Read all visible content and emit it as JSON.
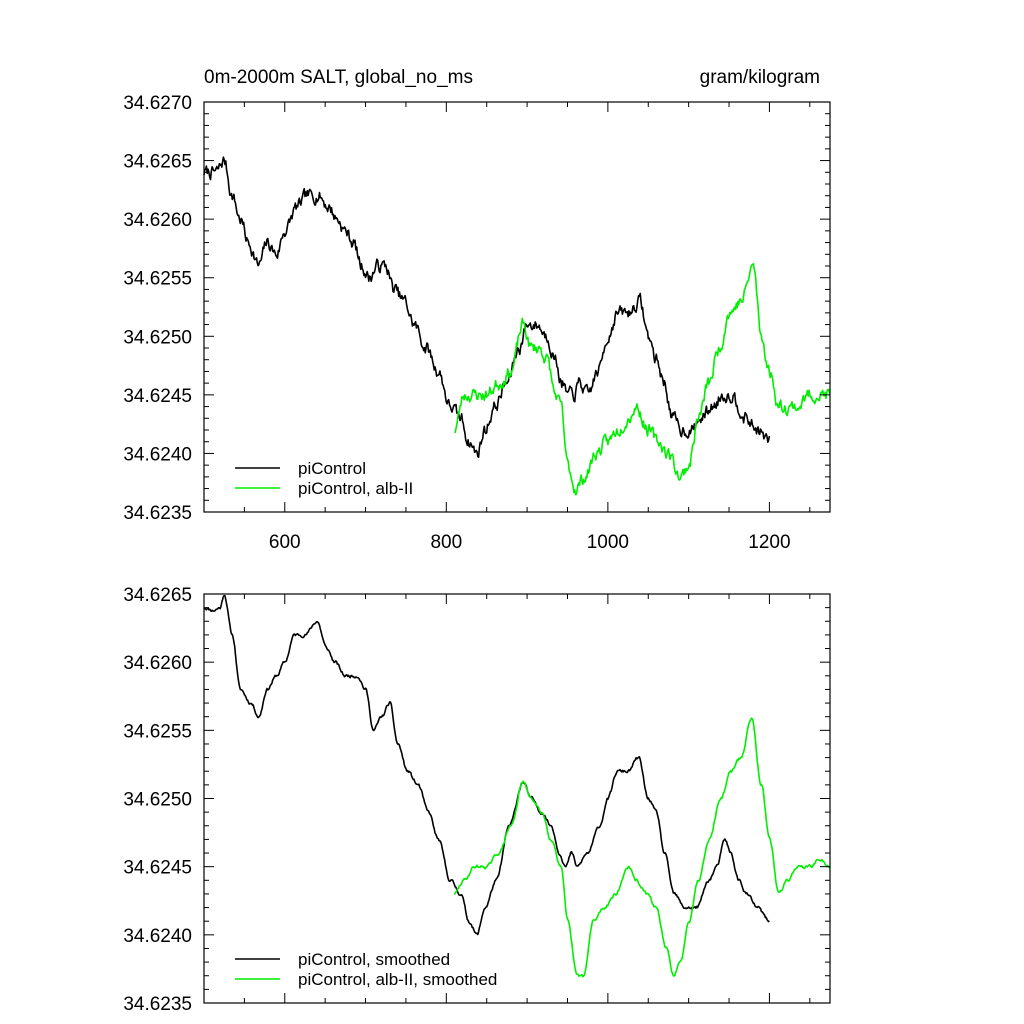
{
  "header": {
    "left_title": "0m-2000m SALT, global_no_ms",
    "right_units": "gram/kilogram"
  },
  "colors": {
    "control": "#000000",
    "experiment": "#00ee00"
  },
  "chart_data": [
    {
      "type": "line",
      "title": "0m-2000m SALT, global_no_ms",
      "units": "gram/kilogram",
      "xlim": [
        500,
        1275
      ],
      "ylim": [
        34.6235,
        34.627
      ],
      "x_ticks": [
        600,
        800,
        1000,
        1200
      ],
      "x_tick_labels": [
        "600",
        "800",
        "1000",
        "1200"
      ],
      "y_ticks": [
        34.6235,
        34.624,
        34.6245,
        34.625,
        34.6255,
        34.626,
        34.6265,
        34.627
      ],
      "y_tick_labels": [
        "34.6235",
        "34.6240",
        "34.6245",
        "34.6250",
        "34.6255",
        "34.6260",
        "34.6265",
        "34.6270"
      ],
      "legend_position": "bottom-left",
      "series": [
        {
          "name": "piControl",
          "color": "#000000",
          "noise": 9e-05,
          "seed": 7,
          "keypoints": [
            [
              500,
              34.6264
            ],
            [
              515,
              34.6264
            ],
            [
              525,
              34.6265
            ],
            [
              535,
              34.6262
            ],
            [
              545,
              34.626
            ],
            [
              555,
              34.6258
            ],
            [
              568,
              34.6256
            ],
            [
              578,
              34.6258
            ],
            [
              590,
              34.6257
            ],
            [
              600,
              34.6259
            ],
            [
              615,
              34.6261
            ],
            [
              628,
              34.6262
            ],
            [
              642,
              34.6262
            ],
            [
              655,
              34.6261
            ],
            [
              665,
              34.626
            ],
            [
              675,
              34.6259
            ],
            [
              685,
              34.6258
            ],
            [
              695,
              34.6256
            ],
            [
              705,
              34.6255
            ],
            [
              715,
              34.6256
            ],
            [
              725,
              34.6256
            ],
            [
              735,
              34.6254
            ],
            [
              748,
              34.6253
            ],
            [
              760,
              34.6251
            ],
            [
              775,
              34.6249
            ],
            [
              790,
              34.6247
            ],
            [
              805,
              34.6244
            ],
            [
              818,
              34.6243
            ],
            [
              828,
              34.6241
            ],
            [
              838,
              34.624
            ],
            [
              848,
              34.6242
            ],
            [
              860,
              34.6244
            ],
            [
              875,
              34.6246
            ],
            [
              890,
              34.6249
            ],
            [
              900,
              34.6251
            ],
            [
              912,
              34.6251
            ],
            [
              925,
              34.625
            ],
            [
              935,
              34.6248
            ],
            [
              943,
              34.6246
            ],
            [
              950,
              34.6245
            ],
            [
              958,
              34.6245
            ],
            [
              965,
              34.6246
            ],
            [
              975,
              34.6245
            ],
            [
              988,
              34.6247
            ],
            [
              1000,
              34.625
            ],
            [
              1012,
              34.6252
            ],
            [
              1025,
              34.6252
            ],
            [
              1040,
              34.6253
            ],
            [
              1050,
              34.625
            ],
            [
              1060,
              34.6248
            ],
            [
              1070,
              34.6246
            ],
            [
              1080,
              34.6243
            ],
            [
              1092,
              34.6242
            ],
            [
              1105,
              34.6242
            ],
            [
              1115,
              34.6243
            ],
            [
              1130,
              34.6244
            ],
            [
              1142,
              34.6245
            ],
            [
              1155,
              34.6245
            ],
            [
              1162,
              34.6244
            ],
            [
              1170,
              34.6243
            ],
            [
              1185,
              34.6242
            ],
            [
              1200,
              34.6241
            ]
          ]
        },
        {
          "name": "piControl, alb-II",
          "color": "#00ee00",
          "noise": 9e-05,
          "seed": 23,
          "keypoints": [
            [
              810,
              34.6242
            ],
            [
              822,
              34.6245
            ],
            [
              835,
              34.6245
            ],
            [
              850,
              34.6245
            ],
            [
              865,
              34.6246
            ],
            [
              880,
              34.6247
            ],
            [
              895,
              34.6251
            ],
            [
              905,
              34.6249
            ],
            [
              915,
              34.6249
            ],
            [
              925,
              34.6248
            ],
            [
              935,
              34.6245
            ],
            [
              942,
              34.6244
            ],
            [
              950,
              34.6239
            ],
            [
              960,
              34.6237
            ],
            [
              972,
              34.6238
            ],
            [
              985,
              34.624
            ],
            [
              1000,
              34.6241
            ],
            [
              1012,
              34.6242
            ],
            [
              1025,
              34.6243
            ],
            [
              1035,
              34.6244
            ],
            [
              1050,
              34.6242
            ],
            [
              1062,
              34.6241
            ],
            [
              1075,
              34.624
            ],
            [
              1090,
              34.6238
            ],
            [
              1100,
              34.6239
            ],
            [
              1112,
              34.6243
            ],
            [
              1125,
              34.6246
            ],
            [
              1138,
              34.6249
            ],
            [
              1150,
              34.6252
            ],
            [
              1165,
              34.6253
            ],
            [
              1180,
              34.6256
            ],
            [
              1190,
              34.625
            ],
            [
              1200,
              34.6247
            ],
            [
              1212,
              34.6244
            ],
            [
              1222,
              34.6244
            ],
            [
              1235,
              34.6244
            ],
            [
              1250,
              34.6245
            ],
            [
              1262,
              34.6245
            ],
            [
              1275,
              34.6245
            ]
          ]
        }
      ]
    },
    {
      "type": "line",
      "xlim": [
        500,
        1275
      ],
      "ylim": [
        34.6235,
        34.6265
      ],
      "x_ticks": [
        600,
        800,
        1000,
        1200
      ],
      "y_ticks": [
        34.6235,
        34.624,
        34.6245,
        34.625,
        34.6255,
        34.626,
        34.6265
      ],
      "y_tick_labels": [
        "34.6235",
        "34.6240",
        "34.6245",
        "34.6250",
        "34.6255",
        "34.6260",
        "34.6265"
      ],
      "legend_position": "bottom-left",
      "series": [
        {
          "name": "piControl, smoothed",
          "color": "#000000",
          "noise": 2e-05,
          "seed": 11,
          "keypoints": [
            [
              500,
              34.6264
            ],
            [
              512,
              34.62638
            ],
            [
              520,
              34.6264
            ],
            [
              525,
              34.6265
            ],
            [
              535,
              34.6262
            ],
            [
              545,
              34.6258
            ],
            [
              558,
              34.6257
            ],
            [
              568,
              34.6256
            ],
            [
              578,
              34.6258
            ],
            [
              590,
              34.6259
            ],
            [
              600,
              34.626
            ],
            [
              612,
              34.6262
            ],
            [
              625,
              34.6262
            ],
            [
              640,
              34.6263
            ],
            [
              652,
              34.6261
            ],
            [
              662,
              34.626
            ],
            [
              675,
              34.6259
            ],
            [
              690,
              34.6259
            ],
            [
              700,
              34.6258
            ],
            [
              710,
              34.6255
            ],
            [
              720,
              34.6256
            ],
            [
              730,
              34.6257
            ],
            [
              740,
              34.6254
            ],
            [
              752,
              34.6252
            ],
            [
              765,
              34.6251
            ],
            [
              778,
              34.6249
            ],
            [
              790,
              34.6247
            ],
            [
              805,
              34.6244
            ],
            [
              818,
              34.6243
            ],
            [
              828,
              34.6241
            ],
            [
              838,
              34.624
            ],
            [
              848,
              34.6242
            ],
            [
              862,
              34.6244
            ],
            [
              878,
              34.6248
            ],
            [
              895,
              34.62512
            ],
            [
              905,
              34.625
            ],
            [
              918,
              34.6249
            ],
            [
              930,
              34.6248
            ],
            [
              940,
              34.6246
            ],
            [
              948,
              34.6245
            ],
            [
              955,
              34.6246
            ],
            [
              962,
              34.6245
            ],
            [
              975,
              34.6246
            ],
            [
              990,
              34.6248
            ],
            [
              1000,
              34.625
            ],
            [
              1012,
              34.6252
            ],
            [
              1025,
              34.6252
            ],
            [
              1038,
              34.6253
            ],
            [
              1050,
              34.625
            ],
            [
              1060,
              34.6249
            ],
            [
              1070,
              34.6246
            ],
            [
              1082,
              34.6243
            ],
            [
              1095,
              34.6242
            ],
            [
              1110,
              34.6242
            ],
            [
              1125,
              34.6244
            ],
            [
              1135,
              34.6245
            ],
            [
              1145,
              34.6247
            ],
            [
              1152,
              34.6246
            ],
            [
              1162,
              34.6244
            ],
            [
              1172,
              34.6243
            ],
            [
              1185,
              34.6242
            ],
            [
              1200,
              34.6241
            ]
          ]
        },
        {
          "name": "piControl, alb-II, smoothed",
          "color": "#00ee00",
          "noise": 2e-05,
          "seed": 29,
          "keypoints": [
            [
              810,
              34.6243
            ],
            [
              822,
              34.6244
            ],
            [
              835,
              34.6245
            ],
            [
              850,
              34.6245
            ],
            [
              865,
              34.6246
            ],
            [
              880,
              34.6248
            ],
            [
              895,
              34.62512
            ],
            [
              905,
              34.625
            ],
            [
              918,
              34.6249
            ],
            [
              930,
              34.6247
            ],
            [
              942,
              34.6245
            ],
            [
              950,
              34.6241
            ],
            [
              962,
              34.6237
            ],
            [
              970,
              34.6237
            ],
            [
              982,
              34.6241
            ],
            [
              995,
              34.6242
            ],
            [
              1010,
              34.6243
            ],
            [
              1025,
              34.6245
            ],
            [
              1035,
              34.6244
            ],
            [
              1048,
              34.6243
            ],
            [
              1060,
              34.6242
            ],
            [
              1072,
              34.6239
            ],
            [
              1082,
              34.6237
            ],
            [
              1090,
              34.6238
            ],
            [
              1100,
              34.6241
            ],
            [
              1112,
              34.6244
            ],
            [
              1125,
              34.6247
            ],
            [
              1140,
              34.625
            ],
            [
              1152,
              34.6252
            ],
            [
              1165,
              34.6253
            ],
            [
              1178,
              34.6256
            ],
            [
              1190,
              34.6251
            ],
            [
              1200,
              34.6247
            ],
            [
              1212,
              34.6243
            ],
            [
              1222,
              34.6244
            ],
            [
              1235,
              34.6245
            ],
            [
              1250,
              34.6245
            ],
            [
              1262,
              34.62455
            ],
            [
              1275,
              34.6245
            ]
          ]
        }
      ]
    }
  ]
}
